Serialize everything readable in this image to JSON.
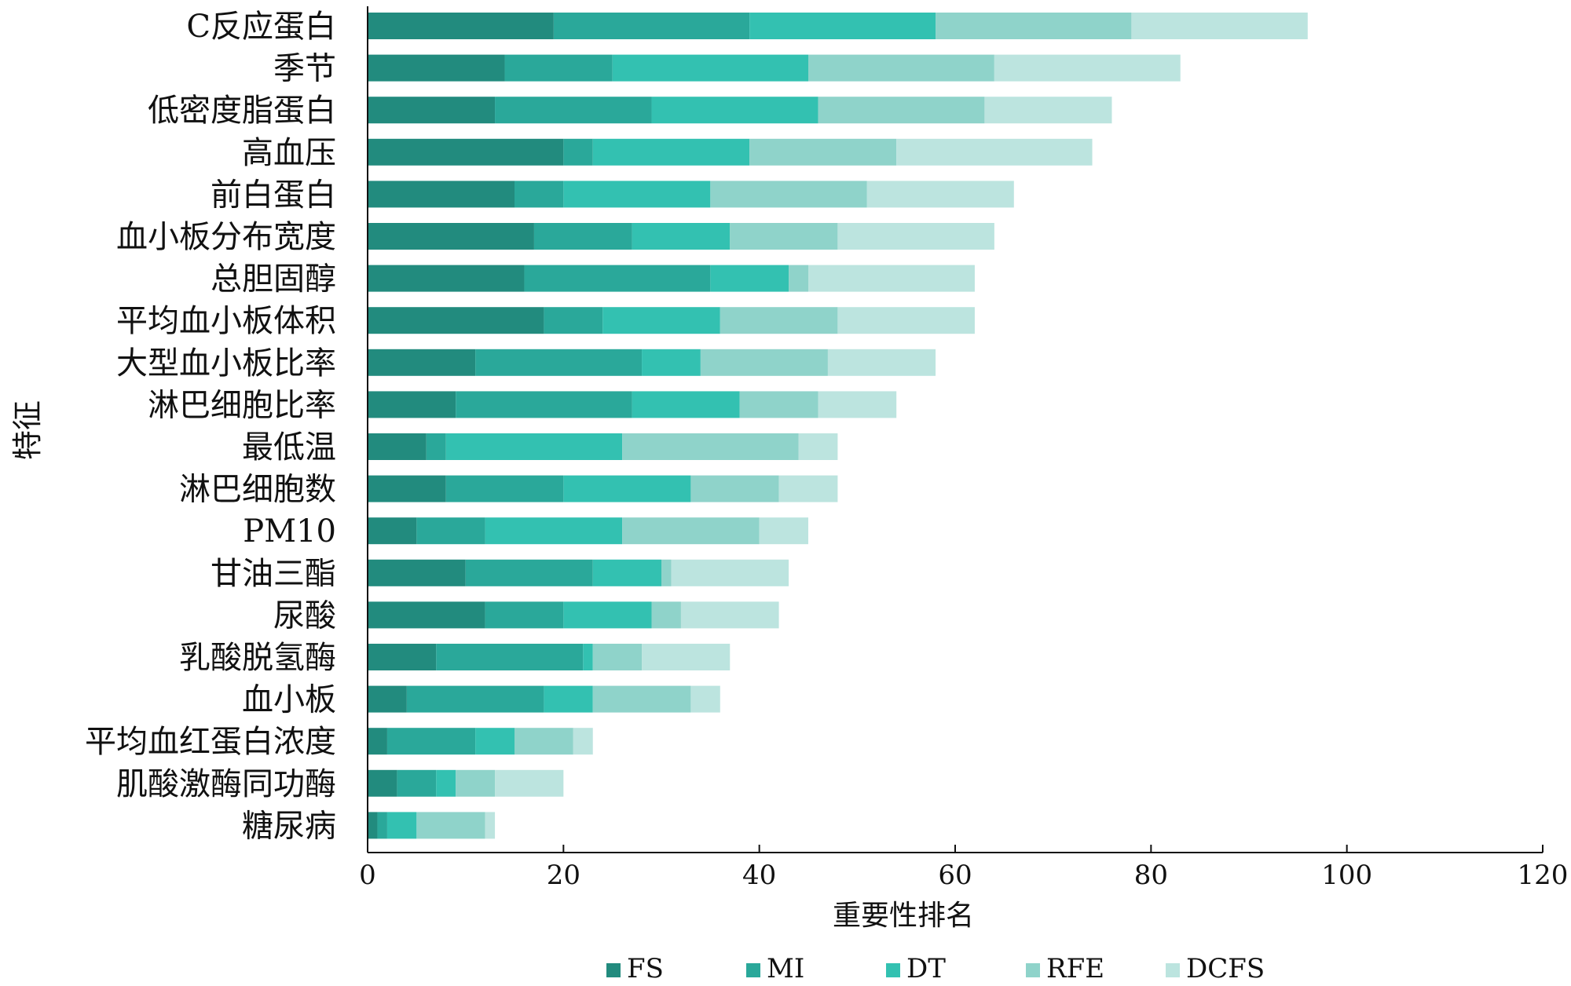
{
  "chart_data": {
    "type": "bar",
    "orientation": "horizontal",
    "stacked": true,
    "title": "",
    "xlabel": "重要性排名",
    "ylabel": "特征",
    "xlim": [
      0,
      120
    ],
    "xticks": [
      0,
      20,
      40,
      60,
      80,
      100,
      120
    ],
    "grid": false,
    "legend_position": "bottom",
    "categories": [
      "C反应蛋白",
      "季节",
      "低密度脂蛋白",
      "高血压",
      "前白蛋白",
      "血小板分布宽度",
      "总胆固醇",
      "平均血小板体积",
      "大型血小板比率",
      "淋巴细胞比率",
      "最低温",
      "淋巴细胞数",
      "PM10",
      "甘油三酯",
      "尿酸",
      "乳酸脱氢酶",
      "血小板",
      "平均血红蛋白浓度",
      "肌酸激酶同功酶",
      "糖尿病"
    ],
    "series": [
      {
        "name": "FS",
        "color": "#228B7E",
        "values": [
          19,
          14,
          13,
          20,
          15,
          17,
          16,
          18,
          11,
          9,
          6,
          8,
          5,
          10,
          12,
          7,
          4,
          2,
          3,
          1
        ]
      },
      {
        "name": "MI",
        "color": "#2AA89A",
        "values": [
          20,
          11,
          16,
          3,
          5,
          10,
          19,
          6,
          17,
          18,
          2,
          12,
          7,
          13,
          8,
          15,
          14,
          9,
          4,
          1
        ]
      },
      {
        "name": "DT",
        "color": "#33C1B1",
        "values": [
          19,
          20,
          17,
          16,
          15,
          10,
          8,
          12,
          6,
          11,
          18,
          13,
          14,
          7,
          9,
          1,
          5,
          4,
          2,
          3
        ]
      },
      {
        "name": "RFE",
        "color": "#8FD3CA",
        "values": [
          20,
          19,
          17,
          15,
          16,
          11,
          2,
          12,
          13,
          8,
          18,
          9,
          14,
          1,
          3,
          5,
          10,
          6,
          4,
          7
        ]
      },
      {
        "name": "DCFS",
        "color": "#BCE4DF",
        "values": [
          18,
          19,
          13,
          20,
          15,
          16,
          17,
          14,
          11,
          8,
          4,
          6,
          5,
          12,
          10,
          9,
          3,
          2,
          7,
          1
        ]
      }
    ]
  }
}
